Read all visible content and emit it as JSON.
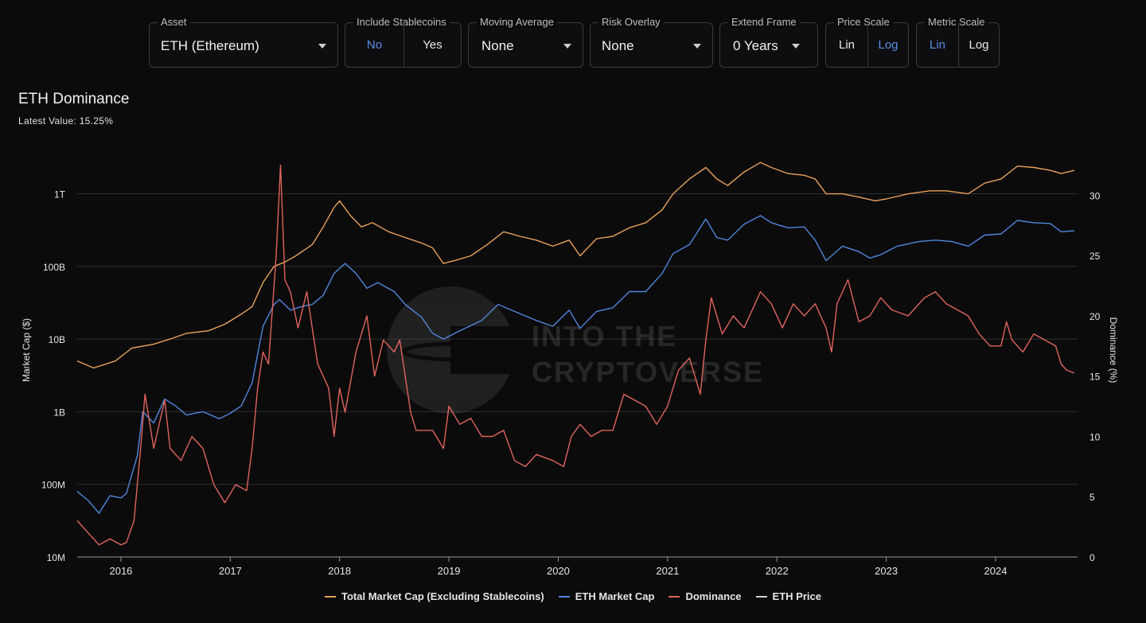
{
  "controls": {
    "asset": {
      "label": "Asset",
      "value": "ETH (Ethereum)"
    },
    "stablecoins": {
      "label": "Include Stablecoins",
      "options": [
        "No",
        "Yes"
      ],
      "selected": "No"
    },
    "moving_average": {
      "label": "Moving Average",
      "value": "None"
    },
    "risk_overlay": {
      "label": "Risk Overlay",
      "value": "None"
    },
    "extend_frame": {
      "label": "Extend Frame",
      "value": "0 Years"
    },
    "price_scale": {
      "label": "Price Scale",
      "options": [
        "Lin",
        "Log"
      ],
      "selected": "Log"
    },
    "metric_scale": {
      "label": "Metric Scale",
      "options": [
        "Lin",
        "Log"
      ],
      "selected": "Lin"
    }
  },
  "chart_title": "ETH Dominance",
  "latest_value_text": "Latest Value: 15.25%",
  "watermark": "INTO THE CRYPTOVERSE",
  "colors": {
    "total_market_cap": "#e8a15a",
    "eth_market_cap": "#4f86d9",
    "dominance": "#e0645c",
    "eth_price": "#cfcfcf",
    "accent": "#5b8ee6"
  },
  "chart_data": {
    "type": "line",
    "title": "ETH Dominance",
    "xlabel": "",
    "ylabel_left": "Market Cap ($)",
    "ylabel_right": "Dominance (%)",
    "x_ticks": [
      "2016",
      "2017",
      "2018",
      "2019",
      "2020",
      "2021",
      "2022",
      "2023",
      "2024"
    ],
    "x_range": [
      2015.6,
      2024.75
    ],
    "y_left_scale": "log",
    "y_left_range": [
      10000000,
      3000000000000
    ],
    "y_left_ticks": [
      {
        "value": 10000000,
        "label": "10M"
      },
      {
        "value": 100000000,
        "label": "100M"
      },
      {
        "value": 1000000000,
        "label": "1B"
      },
      {
        "value": 10000000000,
        "label": "10B"
      },
      {
        "value": 100000000000,
        "label": "100B"
      },
      {
        "value": 1000000000000,
        "label": "1T"
      }
    ],
    "y_right_range": [
      0,
      33
    ],
    "y_right_ticks": [
      0,
      5,
      10,
      15,
      20,
      25,
      30
    ],
    "legend": [
      "Total Market Cap (Excluding Stablecoins)",
      "ETH Market Cap",
      "Dominance",
      "ETH Price"
    ],
    "series": [
      {
        "name": "Total Market Cap (Excluding Stablecoins)",
        "axis": "left",
        "color": "#e8a15a",
        "points": [
          [
            2015.6,
            5000000000.0
          ],
          [
            2015.75,
            4000000000.0
          ],
          [
            2015.95,
            5000000000.0
          ],
          [
            2016.1,
            7500000000.0
          ],
          [
            2016.3,
            8500000000.0
          ],
          [
            2016.45,
            10000000000.0
          ],
          [
            2016.6,
            12000000000.0
          ],
          [
            2016.8,
            13000000000.0
          ],
          [
            2016.95,
            16000000000.0
          ],
          [
            2017.1,
            22000000000.0
          ],
          [
            2017.2,
            28000000000.0
          ],
          [
            2017.3,
            60000000000.0
          ],
          [
            2017.4,
            100000000000.0
          ],
          [
            2017.5,
            115000000000.0
          ],
          [
            2017.6,
            140000000000.0
          ],
          [
            2017.75,
            200000000000.0
          ],
          [
            2017.85,
            350000000000.0
          ],
          [
            2017.95,
            650000000000.0
          ],
          [
            2018.0,
            800000000000.0
          ],
          [
            2018.1,
            500000000000.0
          ],
          [
            2018.2,
            350000000000.0
          ],
          [
            2018.3,
            400000000000.0
          ],
          [
            2018.45,
            300000000000.0
          ],
          [
            2018.6,
            250000000000.0
          ],
          [
            2018.75,
            210000000000.0
          ],
          [
            2018.85,
            180000000000.0
          ],
          [
            2018.95,
            110000000000.0
          ],
          [
            2019.05,
            120000000000.0
          ],
          [
            2019.2,
            140000000000.0
          ],
          [
            2019.35,
            200000000000.0
          ],
          [
            2019.5,
            300000000000.0
          ],
          [
            2019.65,
            260000000000.0
          ],
          [
            2019.8,
            230000000000.0
          ],
          [
            2019.95,
            190000000000.0
          ],
          [
            2020.1,
            230000000000.0
          ],
          [
            2020.2,
            140000000000.0
          ],
          [
            2020.35,
            240000000000.0
          ],
          [
            2020.5,
            260000000000.0
          ],
          [
            2020.65,
            340000000000.0
          ],
          [
            2020.8,
            400000000000.0
          ],
          [
            2020.95,
            600000000000.0
          ],
          [
            2021.05,
            1000000000000.0
          ],
          [
            2021.2,
            1600000000000.0
          ],
          [
            2021.35,
            2300000000000.0
          ],
          [
            2021.45,
            1600000000000.0
          ],
          [
            2021.55,
            1300000000000.0
          ],
          [
            2021.7,
            2000000000000.0
          ],
          [
            2021.85,
            2700000000000.0
          ],
          [
            2021.95,
            2300000000000.0
          ],
          [
            2022.1,
            1900000000000.0
          ],
          [
            2022.25,
            1800000000000.0
          ],
          [
            2022.35,
            1600000000000.0
          ],
          [
            2022.45,
            1000000000000.0
          ],
          [
            2022.6,
            1000000000000.0
          ],
          [
            2022.75,
            900000000000.0
          ],
          [
            2022.9,
            800000000000.0
          ],
          [
            2023.0,
            850000000000.0
          ],
          [
            2023.2,
            1000000000000.0
          ],
          [
            2023.4,
            1100000000000.0
          ],
          [
            2023.55,
            1100000000000.0
          ],
          [
            2023.75,
            1000000000000.0
          ],
          [
            2023.9,
            1400000000000.0
          ],
          [
            2024.05,
            1600000000000.0
          ],
          [
            2024.2,
            2400000000000.0
          ],
          [
            2024.35,
            2300000000000.0
          ],
          [
            2024.5,
            2100000000000.0
          ],
          [
            2024.6,
            1900000000000.0
          ],
          [
            2024.72,
            2100000000000.0
          ]
        ]
      },
      {
        "name": "ETH Market Cap",
        "axis": "left",
        "color": "#4f86d9",
        "points": [
          [
            2015.6,
            80000000.0
          ],
          [
            2015.7,
            60000000.0
          ],
          [
            2015.8,
            40000000.0
          ],
          [
            2015.9,
            70000000.0
          ],
          [
            2016.0,
            65000000.0
          ],
          [
            2016.05,
            75000000.0
          ],
          [
            2016.15,
            250000000.0
          ],
          [
            2016.2,
            1000000000.0
          ],
          [
            2016.3,
            700000000.0
          ],
          [
            2016.4,
            1500000000.0
          ],
          [
            2016.5,
            1200000000.0
          ],
          [
            2016.6,
            900000000.0
          ],
          [
            2016.75,
            1000000000.0
          ],
          [
            2016.9,
            800000000.0
          ],
          [
            2017.0,
            950000000.0
          ],
          [
            2017.1,
            1200000000.0
          ],
          [
            2017.2,
            2500000000.0
          ],
          [
            2017.3,
            15000000000.0
          ],
          [
            2017.4,
            30000000000.0
          ],
          [
            2017.45,
            35000000000.0
          ],
          [
            2017.55,
            25000000000.0
          ],
          [
            2017.65,
            28000000000.0
          ],
          [
            2017.75,
            30000000000.0
          ],
          [
            2017.85,
            40000000000.0
          ],
          [
            2017.95,
            80000000000.0
          ],
          [
            2018.05,
            110000000000.0
          ],
          [
            2018.15,
            80000000000.0
          ],
          [
            2018.25,
            50000000000.0
          ],
          [
            2018.35,
            60000000000.0
          ],
          [
            2018.5,
            45000000000.0
          ],
          [
            2018.6,
            30000000000.0
          ],
          [
            2018.75,
            20000000000.0
          ],
          [
            2018.85,
            12000000000.0
          ],
          [
            2018.95,
            10000000000.0
          ],
          [
            2019.1,
            13000000000.0
          ],
          [
            2019.3,
            18000000000.0
          ],
          [
            2019.45,
            30000000000.0
          ],
          [
            2019.6,
            24000000000.0
          ],
          [
            2019.8,
            18000000000.0
          ],
          [
            2019.95,
            15000000000.0
          ],
          [
            2020.1,
            25000000000.0
          ],
          [
            2020.2,
            14000000000.0
          ],
          [
            2020.35,
            24000000000.0
          ],
          [
            2020.5,
            27000000000.0
          ],
          [
            2020.65,
            45000000000.0
          ],
          [
            2020.8,
            45000000000.0
          ],
          [
            2020.95,
            80000000000.0
          ],
          [
            2021.05,
            150000000000.0
          ],
          [
            2021.2,
            200000000000.0
          ],
          [
            2021.35,
            450000000000.0
          ],
          [
            2021.45,
            250000000000.0
          ],
          [
            2021.55,
            230000000000.0
          ],
          [
            2021.7,
            380000000000.0
          ],
          [
            2021.85,
            500000000000.0
          ],
          [
            2021.95,
            400000000000.0
          ],
          [
            2022.1,
            340000000000.0
          ],
          [
            2022.25,
            350000000000.0
          ],
          [
            2022.35,
            230000000000.0
          ],
          [
            2022.45,
            120000000000.0
          ],
          [
            2022.6,
            190000000000.0
          ],
          [
            2022.75,
            160000000000.0
          ],
          [
            2022.85,
            130000000000.0
          ],
          [
            2022.95,
            145000000000.0
          ],
          [
            2023.1,
            190000000000.0
          ],
          [
            2023.3,
            220000000000.0
          ],
          [
            2023.45,
            230000000000.0
          ],
          [
            2023.6,
            220000000000.0
          ],
          [
            2023.75,
            190000000000.0
          ],
          [
            2023.9,
            270000000000.0
          ],
          [
            2024.05,
            280000000000.0
          ],
          [
            2024.2,
            430000000000.0
          ],
          [
            2024.35,
            400000000000.0
          ],
          [
            2024.5,
            390000000000.0
          ],
          [
            2024.6,
            300000000000.0
          ],
          [
            2024.72,
            310000000000.0
          ]
        ]
      },
      {
        "name": "Dominance",
        "axis": "right",
        "color": "#e0645c",
        "points": [
          [
            2015.6,
            3.0
          ],
          [
            2015.7,
            2.0
          ],
          [
            2015.8,
            1.0
          ],
          [
            2015.9,
            1.5
          ],
          [
            2016.0,
            1.0
          ],
          [
            2016.05,
            1.2
          ],
          [
            2016.12,
            3.0
          ],
          [
            2016.18,
            9.0
          ],
          [
            2016.22,
            13.5
          ],
          [
            2016.3,
            9.0
          ],
          [
            2016.35,
            11.0
          ],
          [
            2016.4,
            13.0
          ],
          [
            2016.45,
            9.0
          ],
          [
            2016.55,
            8.0
          ],
          [
            2016.65,
            10.0
          ],
          [
            2016.75,
            9.0
          ],
          [
            2016.85,
            6.0
          ],
          [
            2016.95,
            4.5
          ],
          [
            2017.05,
            6.0
          ],
          [
            2017.15,
            5.5
          ],
          [
            2017.2,
            9.0
          ],
          [
            2017.25,
            14.0
          ],
          [
            2017.3,
            17.0
          ],
          [
            2017.35,
            16.0
          ],
          [
            2017.42,
            25.0
          ],
          [
            2017.46,
            32.5
          ],
          [
            2017.5,
            23.0
          ],
          [
            2017.55,
            22.0
          ],
          [
            2017.62,
            19.0
          ],
          [
            2017.7,
            22.0
          ],
          [
            2017.8,
            16.0
          ],
          [
            2017.9,
            14.0
          ],
          [
            2017.95,
            10.0
          ],
          [
            2018.0,
            14.0
          ],
          [
            2018.05,
            12.0
          ],
          [
            2018.15,
            17.0
          ],
          [
            2018.25,
            20.0
          ],
          [
            2018.32,
            15.0
          ],
          [
            2018.4,
            18.0
          ],
          [
            2018.5,
            17.0
          ],
          [
            2018.55,
            18.0
          ],
          [
            2018.65,
            12.0
          ],
          [
            2018.7,
            10.5
          ],
          [
            2018.85,
            10.5
          ],
          [
            2018.95,
            9.0
          ],
          [
            2019.0,
            12.5
          ],
          [
            2019.1,
            11.0
          ],
          [
            2019.2,
            11.5
          ],
          [
            2019.3,
            10.0
          ],
          [
            2019.4,
            10.0
          ],
          [
            2019.5,
            10.5
          ],
          [
            2019.6,
            8.0
          ],
          [
            2019.7,
            7.5
          ],
          [
            2019.8,
            8.5
          ],
          [
            2019.95,
            8.0
          ],
          [
            2020.05,
            7.5
          ],
          [
            2020.12,
            10.0
          ],
          [
            2020.2,
            11.0
          ],
          [
            2020.3,
            10.0
          ],
          [
            2020.4,
            10.5
          ],
          [
            2020.5,
            10.5
          ],
          [
            2020.6,
            13.5
          ],
          [
            2020.7,
            13.0
          ],
          [
            2020.8,
            12.5
          ],
          [
            2020.9,
            11.0
          ],
          [
            2021.0,
            12.5
          ],
          [
            2021.1,
            15.5
          ],
          [
            2021.2,
            16.5
          ],
          [
            2021.3,
            13.5
          ],
          [
            2021.35,
            18.0
          ],
          [
            2021.4,
            21.5
          ],
          [
            2021.5,
            18.5
          ],
          [
            2021.6,
            20.0
          ],
          [
            2021.7,
            19.0
          ],
          [
            2021.85,
            22.0
          ],
          [
            2021.95,
            21.0
          ],
          [
            2022.05,
            19.0
          ],
          [
            2022.15,
            21.0
          ],
          [
            2022.25,
            20.0
          ],
          [
            2022.35,
            21.0
          ],
          [
            2022.45,
            19.0
          ],
          [
            2022.5,
            17.0
          ],
          [
            2022.55,
            21.0
          ],
          [
            2022.65,
            23.0
          ],
          [
            2022.75,
            19.5
          ],
          [
            2022.85,
            20.0
          ],
          [
            2022.95,
            21.5
          ],
          [
            2023.05,
            20.5
          ],
          [
            2023.2,
            20.0
          ],
          [
            2023.35,
            21.5
          ],
          [
            2023.45,
            22.0
          ],
          [
            2023.55,
            21.0
          ],
          [
            2023.65,
            20.5
          ],
          [
            2023.75,
            20.0
          ],
          [
            2023.85,
            18.5
          ],
          [
            2023.95,
            17.5
          ],
          [
            2024.05,
            17.5
          ],
          [
            2024.1,
            19.5
          ],
          [
            2024.15,
            18.0
          ],
          [
            2024.25,
            17.0
          ],
          [
            2024.35,
            18.5
          ],
          [
            2024.45,
            18.0
          ],
          [
            2024.55,
            17.5
          ],
          [
            2024.6,
            16.0
          ],
          [
            2024.65,
            15.5
          ],
          [
            2024.72,
            15.25
          ]
        ]
      },
      {
        "name": "ETH Price",
        "axis": "left",
        "color": "#cfcfcf",
        "points": []
      }
    ]
  }
}
